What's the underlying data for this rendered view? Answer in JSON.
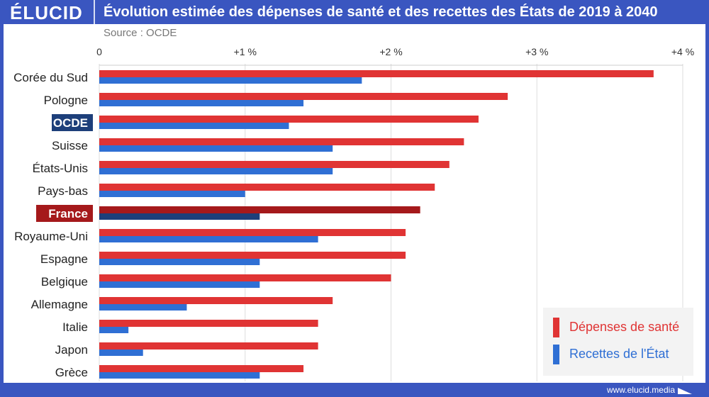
{
  "header": {
    "logo": "ÉLUCID",
    "title": "Évolution estimée des dépenses de santé et des recettes des États de 2019 à 2040",
    "source": "Source : OCDE",
    "footer": "www.elucid.media"
  },
  "colors": {
    "red": "#e03434",
    "blue": "#2f6fd4",
    "red_highlight": "#a5191b",
    "blue_highlight": "#1d3f7a",
    "frame": "#3a56c0"
  },
  "chart_data": {
    "type": "bar",
    "orientation": "horizontal",
    "title": "Évolution estimée des dépenses de santé et des recettes des États de 2019 à 2040",
    "categories": [
      "Corée du Sud",
      "Pologne",
      "OCDE",
      "Suisse",
      "États-Unis",
      "Pays-bas",
      "France",
      "Royaume-Uni",
      "Espagne",
      "Belgique",
      "Allemagne",
      "Italie",
      "Japon",
      "Grèce"
    ],
    "highlighted": [
      "OCDE",
      "France"
    ],
    "series": [
      {
        "name": "Dépenses de santé",
        "color": "#e03434",
        "values": [
          3.8,
          2.8,
          2.6,
          2.5,
          2.4,
          2.3,
          2.2,
          2.1,
          2.1,
          2.0,
          1.6,
          1.5,
          1.5,
          1.4
        ]
      },
      {
        "name": "Recettes de l'État",
        "color": "#2f6fd4",
        "values": [
          1.8,
          1.4,
          1.3,
          1.6,
          1.6,
          1.0,
          1.1,
          1.5,
          1.1,
          1.1,
          0.6,
          0.2,
          0.3,
          1.1
        ]
      }
    ],
    "xlim": [
      0,
      4
    ],
    "xticks": [
      {
        "v": 0,
        "label": "0"
      },
      {
        "v": 1,
        "label": "+1 %"
      },
      {
        "v": 2,
        "label": "+2 %"
      },
      {
        "v": 3,
        "label": "+3 %"
      },
      {
        "v": 4,
        "label": "+4 %"
      }
    ],
    "grid": true,
    "legend": "bottom-right"
  }
}
